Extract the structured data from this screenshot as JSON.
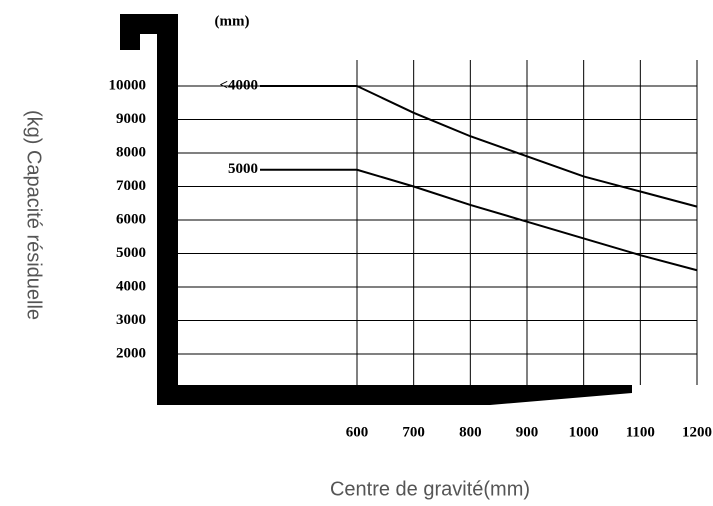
{
  "chart_data": {
    "type": "line",
    "unit_label": "(mm)",
    "x_label": "Centre de gravité(mm)",
    "y_label": "(kg) Capacité résiduelle",
    "x": [
      600,
      700,
      800,
      900,
      1000,
      1100,
      1200
    ],
    "series": [
      {
        "name": "<4000",
        "color": "#000000",
        "values": [
          10000,
          9200,
          8500,
          7900,
          7300,
          6850,
          6400
        ]
      },
      {
        "name": "5000",
        "color": "#000000",
        "values": [
          7500,
          7000,
          6450,
          5950,
          5450,
          4950,
          4500
        ]
      }
    ],
    "xlim": [
      300,
      1200
    ],
    "xticks": [
      600,
      700,
      800,
      900,
      1000,
      1100,
      1200
    ],
    "ylim": [
      1000,
      11000
    ],
    "yticks": [
      2000,
      3000,
      4000,
      5000,
      6000,
      7000,
      8000,
      9000,
      10000
    ],
    "grid": true
  }
}
